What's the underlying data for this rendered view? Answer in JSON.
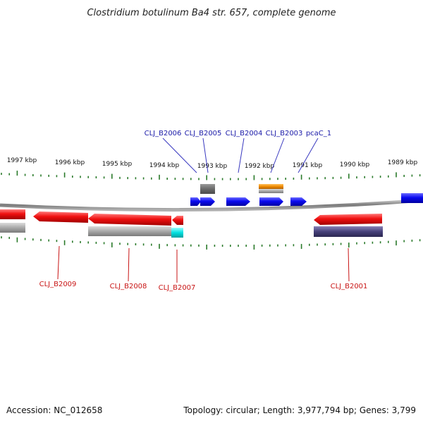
{
  "title": "Clostridium botulinum Ba4 str. 657, complete genome",
  "kbp_ticks": [
    "1997 kbp",
    "1996 kbp",
    "1995 kbp",
    "1994 kbp",
    "1993 kbp",
    "1992 kbp",
    "1991 kbp",
    "1990 kbp",
    "1989 kbp"
  ],
  "top_labels": [
    "CLJ_B2006",
    "CLJ_B2005",
    "CLJ_B2004",
    "CLJ_B2003",
    "pcaC_1"
  ],
  "bottom_labels": [
    "CLJ_B2009",
    "CLJ_B2008",
    "CLJ_B2007",
    "CLJ_B2001"
  ],
  "footer": {
    "accession": "Accession: NC_012658",
    "summary": "Topology: circular; Length: 3,977,794 bp; Genes: 3,799"
  },
  "colors": {
    "forward_gene": "#0a0af0",
    "reverse_gene": "#f01010",
    "gray_feature": "#a8a8a8",
    "dark_gray_feature": "#707070",
    "orange_feature": "#f08c00",
    "cyan_feature": "#00e0e0",
    "navy_feature": "#46407a",
    "tick_green": "#2a7a2a",
    "backbone": "#7a7a7a"
  }
}
